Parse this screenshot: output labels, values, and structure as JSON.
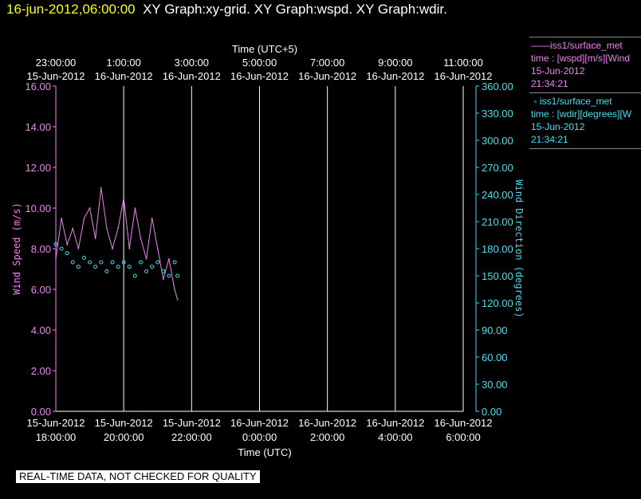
{
  "header": {
    "timestamp": "16-jun-2012,06:00:00",
    "graphs": "XY Graph:xy-grid.  XY Graph:wspd.  XY Graph:wdir."
  },
  "legend": {
    "series1": {
      "name": "iss1/surface_met",
      "line2": "time : [wspd][m/s][Wind",
      "date": "15-Jun-2012",
      "time": "21:34:21"
    },
    "series2": {
      "name": "iss1/surface_met",
      "line2": "time : [wdir][degrees][W",
      "date": "15-Jun-2012",
      "time": "21:34:21"
    }
  },
  "disclaimer": "REAL-TIME DATA, NOT CHECKED FOR QUALITY",
  "colors": {
    "speed": "#ee82ee",
    "direction": "#40e0f0",
    "grid": "#ffffff",
    "background": "#000000",
    "timestamp": "#ffff00"
  },
  "chart_data": {
    "type": "line",
    "x_start_utc": "2012-06-15T18:00:00",
    "x_end_utc": "2012-06-16T06:00:00",
    "top_axis_label": "Time (UTC+5)",
    "bottom_axis_label": "Time (UTC)",
    "top_ticks": [
      {
        "time": "23:00:00",
        "date": "15-Jun-2012"
      },
      {
        "time": "1:00:00",
        "date": "16-Jun-2012"
      },
      {
        "time": "3:00:00",
        "date": "16-Jun-2012"
      },
      {
        "time": "5:00:00",
        "date": "16-Jun-2012"
      },
      {
        "time": "7:00:00",
        "date": "16-Jun-2012"
      },
      {
        "time": "9:00:00",
        "date": "16-Jun-2012"
      },
      {
        "time": "11:00:00",
        "date": "16-Jun-2012"
      }
    ],
    "bottom_ticks": [
      {
        "time": "18:00:00",
        "date": "15-Jun-2012"
      },
      {
        "time": "20:00:00",
        "date": "15-Jun-2012"
      },
      {
        "time": "22:00:00",
        "date": "15-Jun-2012"
      },
      {
        "time": "0:00:00",
        "date": "16-Jun-2012"
      },
      {
        "time": "2:00:00",
        "date": "16-Jun-2012"
      },
      {
        "time": "4:00:00",
        "date": "16-Jun-2012"
      },
      {
        "time": "6:00:00",
        "date": "16-Jun-2012"
      }
    ],
    "left_axis": {
      "label": "Wind Speed (m/s)",
      "min": 0,
      "max": 16,
      "ticks": [
        "0.00",
        "2.00",
        "4.00",
        "6.00",
        "8.00",
        "10.00",
        "12.00",
        "14.00",
        "16.00"
      ]
    },
    "right_axis": {
      "label": "Wind Direction (degrees)",
      "min": 0,
      "max": 360,
      "ticks": [
        "0.00",
        "30.00",
        "60.00",
        "90.00",
        "120.00",
        "150.00",
        "180.00",
        "210.00",
        "240.00",
        "270.00",
        "300.00",
        "330.00",
        "360.00"
      ]
    },
    "grid": "vertical",
    "series": [
      {
        "name": "iss1/surface_met",
        "style": "line",
        "axis": "left",
        "x": [
          "2012-06-15T18:00",
          "2012-06-15T18:10",
          "2012-06-15T18:20",
          "2012-06-15T18:30",
          "2012-06-15T18:40",
          "2012-06-15T18:50",
          "2012-06-15T19:00",
          "2012-06-15T19:10",
          "2012-06-15T19:20",
          "2012-06-15T19:30",
          "2012-06-15T19:40",
          "2012-06-15T19:50",
          "2012-06-15T20:00",
          "2012-06-15T20:10",
          "2012-06-15T20:20",
          "2012-06-15T20:30",
          "2012-06-15T20:40",
          "2012-06-15T20:50",
          "2012-06-15T21:00",
          "2012-06-15T21:10",
          "2012-06-15T21:20",
          "2012-06-15T21:30",
          "2012-06-15T21:35"
        ],
        "values": [
          7.5,
          9.5,
          8.2,
          9.0,
          8.0,
          9.5,
          10.0,
          8.5,
          11.0,
          9.0,
          8.0,
          9.0,
          10.5,
          8.0,
          10.0,
          8.5,
          7.5,
          9.5,
          8.0,
          6.5,
          7.5,
          6.0,
          5.5
        ]
      },
      {
        "name": "iss1/surface_met",
        "style": "points",
        "axis": "right",
        "x": [
          "2012-06-15T18:00",
          "2012-06-15T18:10",
          "2012-06-15T18:20",
          "2012-06-15T18:30",
          "2012-06-15T18:40",
          "2012-06-15T18:50",
          "2012-06-15T19:00",
          "2012-06-15T19:10",
          "2012-06-15T19:20",
          "2012-06-15T19:30",
          "2012-06-15T19:40",
          "2012-06-15T19:50",
          "2012-06-15T20:00",
          "2012-06-15T20:10",
          "2012-06-15T20:20",
          "2012-06-15T20:30",
          "2012-06-15T20:40",
          "2012-06-15T20:50",
          "2012-06-15T21:00",
          "2012-06-15T21:10",
          "2012-06-15T21:20",
          "2012-06-15T21:30",
          "2012-06-15T21:35"
        ],
        "values": [
          185,
          180,
          175,
          165,
          160,
          170,
          165,
          160,
          165,
          155,
          165,
          160,
          165,
          160,
          150,
          165,
          155,
          160,
          165,
          155,
          150,
          165,
          150
        ]
      }
    ]
  }
}
